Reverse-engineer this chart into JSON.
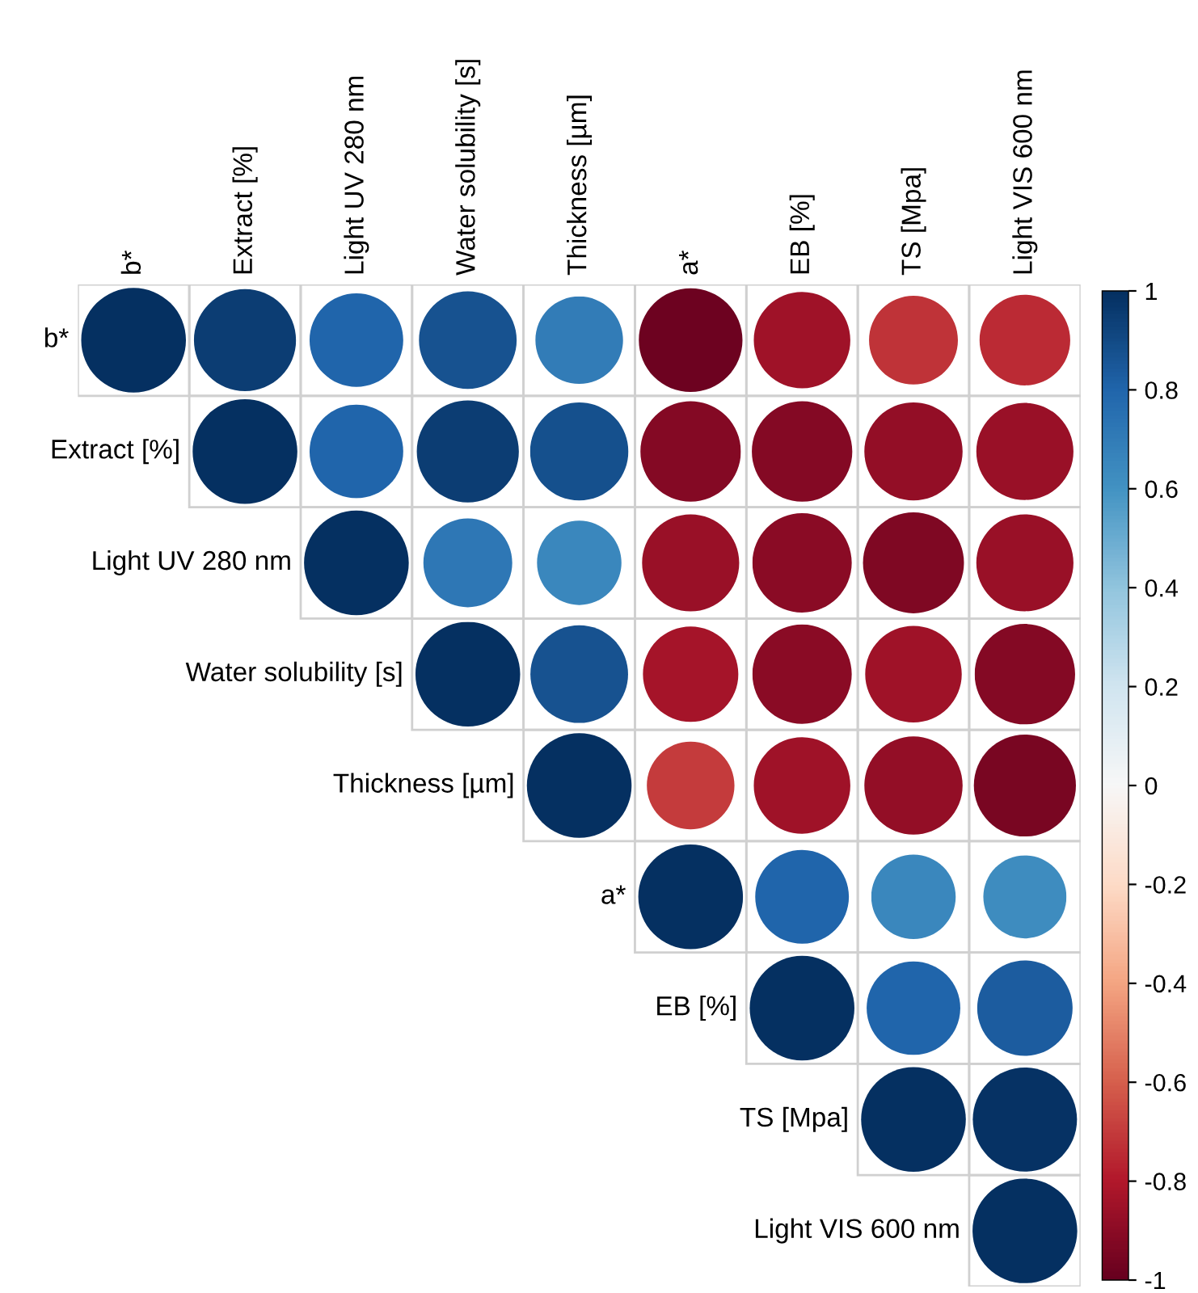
{
  "chart_data": {
    "type": "heatmap",
    "categories": [
      "b*",
      "Extract [%]",
      "Light UV 280 nm",
      "Water solubility [s]",
      "Thickness [µm]",
      "a*",
      "EB [%]",
      "TS [Mpa]",
      "Light VIS 600 nm"
    ],
    "y_categories": [
      "b*",
      "Extract [%]",
      "Light UV 280 nm",
      "Water solubility [s]",
      "Thickness [µm]",
      "a*",
      "EB [%]",
      "TS [Mpa]",
      "Light VIS 600 nm"
    ],
    "cells": [
      [
        1,
        0.95,
        0.8,
        0.87,
        0.7,
        -0.98,
        -0.85,
        -0.72,
        -0.75
      ],
      [
        null,
        1,
        0.8,
        0.95,
        0.88,
        -0.92,
        -0.92,
        -0.88,
        -0.86
      ],
      [
        null,
        null,
        1,
        0.72,
        0.65,
        -0.86,
        -0.9,
        -0.93,
        -0.86
      ],
      [
        null,
        null,
        null,
        1,
        0.87,
        -0.83,
        -0.9,
        -0.85,
        -0.92
      ],
      [
        null,
        null,
        null,
        null,
        1,
        -0.7,
        -0.85,
        -0.88,
        -0.95
      ],
      [
        null,
        null,
        null,
        null,
        null,
        1,
        0.8,
        0.65,
        0.63
      ],
      [
        null,
        null,
        null,
        null,
        null,
        null,
        1,
        0.8,
        0.83
      ],
      [
        null,
        null,
        null,
        null,
        null,
        null,
        null,
        1,
        0.99
      ],
      [
        null,
        null,
        null,
        null,
        null,
        null,
        null,
        null,
        1
      ]
    ],
    "clim": [
      -1,
      1
    ],
    "cticks": [
      1,
      0.8,
      0.6,
      0.4,
      0.2,
      0,
      -0.2,
      -0.4,
      -0.6,
      -0.8,
      -1
    ]
  }
}
